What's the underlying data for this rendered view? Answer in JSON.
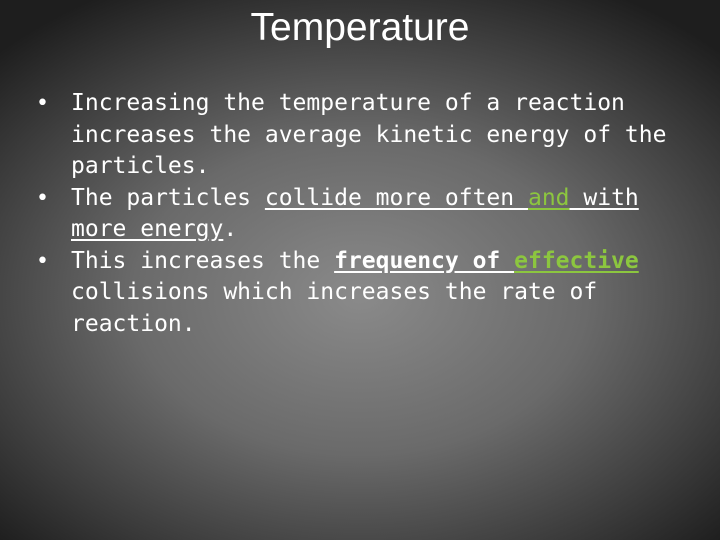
{
  "slide": {
    "title": "Temperature",
    "bullet_char": "•",
    "bullets": [
      {
        "segments": [
          {
            "text": "Increasing the temperature of a reaction increases the average kinetic energy of the particles."
          }
        ]
      },
      {
        "segments": [
          {
            "text": "The particles "
          },
          {
            "text": "collide more often "
          },
          {
            "text": "and"
          },
          {
            "text": " with more energy"
          },
          {
            "text": "."
          }
        ]
      },
      {
        "segments": [
          {
            "text": "This increases the "
          },
          {
            "text": "frequency of "
          },
          {
            "text": "effective"
          },
          {
            "text": " collisions which increases the rate of reaction."
          }
        ]
      }
    ],
    "colors": {
      "text": "#ffffff",
      "highlight_green": "#8cc63f",
      "background_center": "#8a8a8a",
      "background_edge": "#1e1e1e"
    }
  }
}
